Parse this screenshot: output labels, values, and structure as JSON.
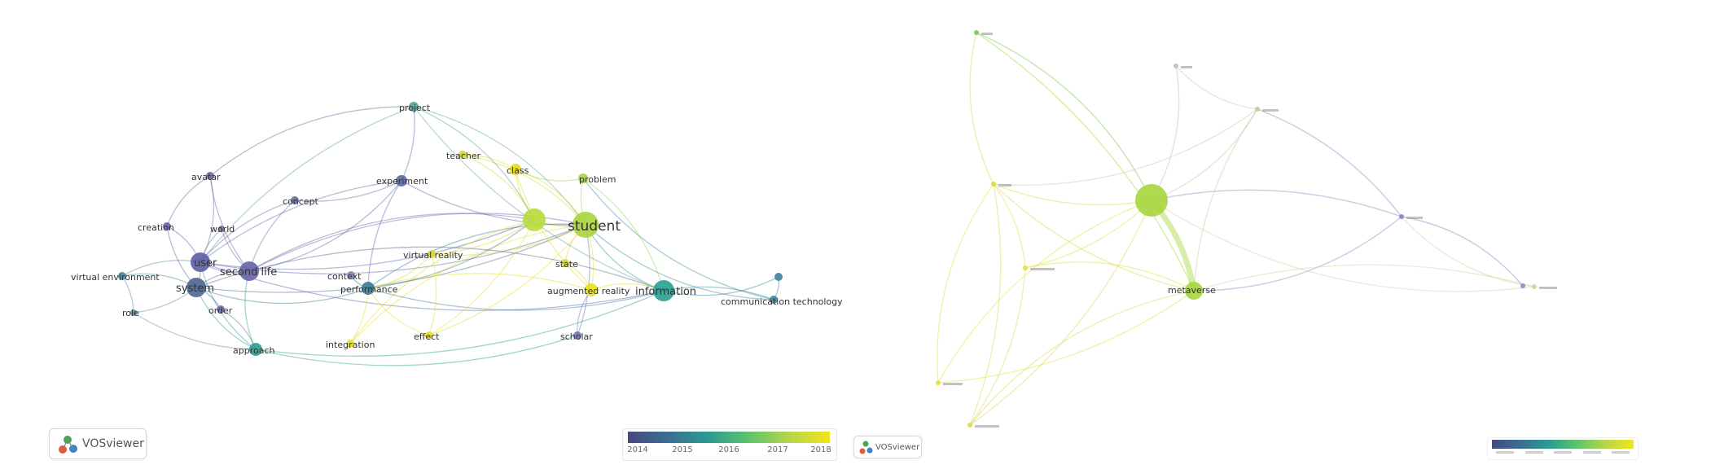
{
  "left_network": {
    "nodes": [
      {
        "label": "student",
        "color": "#a9d63f"
      },
      {
        "label": "",
        "color": "#b9dc3c"
      },
      {
        "label": "information",
        "color": "#2aa392"
      },
      {
        "label": "user",
        "color": "#5f62a6"
      },
      {
        "label": "second life",
        "color": "#6a65a8"
      },
      {
        "label": "system",
        "color": "#506a93"
      },
      {
        "label": "performance",
        "color": "#3c7d97"
      },
      {
        "label": "augmented reality",
        "color": "#e6df1f"
      },
      {
        "label": "approach",
        "color": "#2f9f95"
      },
      {
        "label": "project",
        "color": "#5ba39b"
      },
      {
        "label": "experiment",
        "color": "#5f6ba8"
      },
      {
        "label": "class",
        "color": "#e2dc22"
      },
      {
        "label": "problem",
        "color": "#a7d24e"
      },
      {
        "label": "teacher",
        "color": "#d2d63a"
      },
      {
        "label": "avatar",
        "color": "#6f6ca6"
      },
      {
        "label": "concept",
        "color": "#6d6fa2"
      },
      {
        "label": "creation",
        "color": "#6b66a6"
      },
      {
        "label": "world",
        "color": "#8070ac"
      },
      {
        "label": "virtual reality",
        "color": "#d6da2f"
      },
      {
        "label": "context",
        "color": "#8a82b4"
      },
      {
        "label": "virtual environment",
        "color": "#4d8aa2"
      },
      {
        "label": "state",
        "color": "#d8d833"
      },
      {
        "label": "communication technology",
        "color": "#3d8aa2"
      },
      {
        "label": "",
        "color": "#3f86a1"
      },
      {
        "label": "scholar",
        "color": "#7276b0"
      },
      {
        "label": "integration",
        "color": "#e7e02a"
      },
      {
        "label": "effect",
        "color": "#e9dd28"
      },
      {
        "label": "order",
        "color": "#6f6ea8"
      },
      {
        "label": "role",
        "color": "#5a8fa6"
      }
    ],
    "legend": {
      "ticks": [
        "2014",
        "2015",
        "2016",
        "2017",
        "2018"
      ]
    },
    "brand": "VOSviewer"
  },
  "right_network": {
    "nodes": [
      {
        "label": "",
        "color": "#a9d63f"
      },
      {
        "label": "metaverse",
        "color": "#a9d63f"
      },
      {
        "label": "",
        "color": "#7fc35c"
      },
      {
        "label": "",
        "color": "#d9d94a"
      },
      {
        "label": "",
        "color": "#b0c8b6"
      },
      {
        "label": "",
        "color": "#e3df47"
      },
      {
        "label": "",
        "color": "#c9c8a6"
      },
      {
        "label": "",
        "color": "#8787c4"
      },
      {
        "label": "",
        "color": "#e7e13b"
      },
      {
        "label": "",
        "color": "#d9da57"
      },
      {
        "label": "",
        "color": "#cfd5a5"
      },
      {
        "label": "",
        "color": "#8a8ccb"
      }
    ],
    "brand": "VOSviewer"
  }
}
